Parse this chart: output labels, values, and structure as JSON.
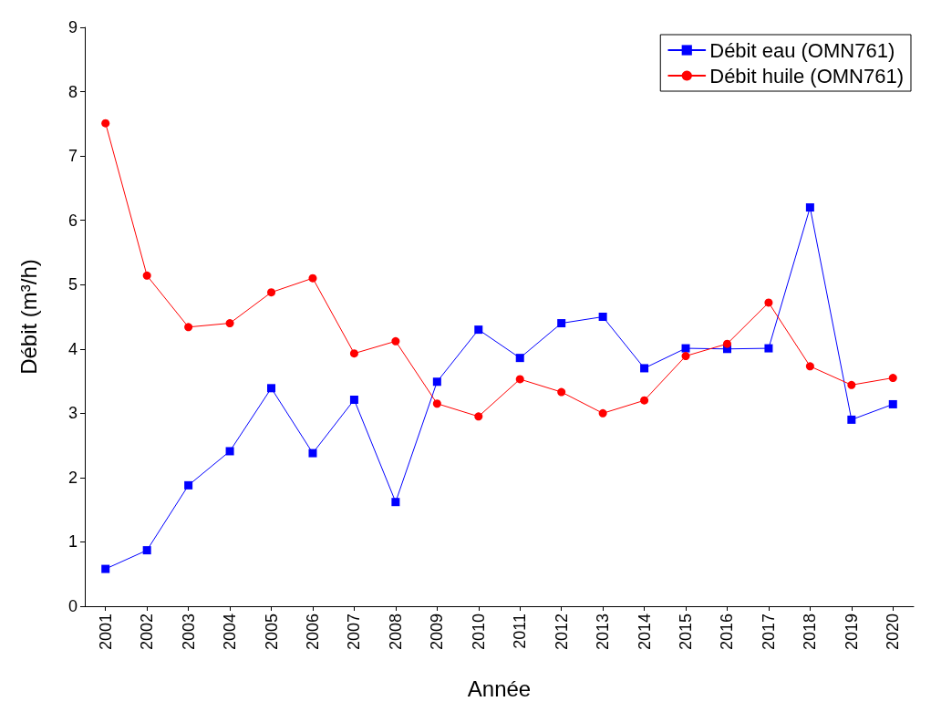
{
  "chart_data": {
    "type": "line",
    "xlabel": "Année",
    "ylabel": "Débit (m³/h)",
    "categories": [
      "2001",
      "2002",
      "2003",
      "2004",
      "2005",
      "2006",
      "2007",
      "2008",
      "2009",
      "2010",
      "2011",
      "2012",
      "2013",
      "2014",
      "2015",
      "2016",
      "2017",
      "2018",
      "2019",
      "2020"
    ],
    "series": [
      {
        "name": "Débit eau (OMN761)",
        "color": "#0000ff",
        "marker": "square",
        "values": [
          0.58,
          0.87,
          1.88,
          2.41,
          3.39,
          2.38,
          3.21,
          1.62,
          3.49,
          4.3,
          3.86,
          4.4,
          4.5,
          3.7,
          4.01,
          4.0,
          4.01,
          6.2,
          2.9,
          3.14
        ]
      },
      {
        "name": "Débit huile (OMN761)",
        "color": "#ff0000",
        "marker": "circle",
        "values": [
          7.51,
          5.14,
          4.34,
          4.4,
          4.88,
          5.1,
          3.93,
          4.12,
          3.15,
          2.95,
          3.53,
          3.33,
          3.0,
          3.2,
          3.89,
          4.08,
          4.72,
          3.73,
          3.44,
          3.55
        ]
      }
    ],
    "ylim": [
      0,
      9
    ],
    "yticks": [
      0,
      1,
      2,
      3,
      4,
      5,
      6,
      7,
      8,
      9
    ],
    "grid": false,
    "legend": "top right",
    "line_style": "solid"
  }
}
